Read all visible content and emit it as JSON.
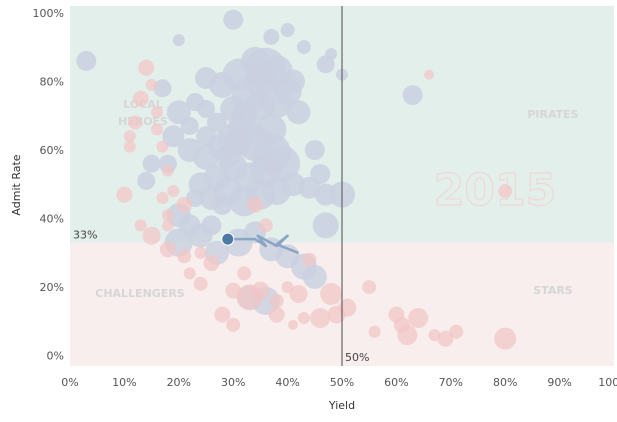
{
  "chart_data": {
    "type": "scatter",
    "xlabel": "Yield",
    "ylabel": "Admit Rate",
    "xlim": [
      0,
      100
    ],
    "ylim": [
      -3,
      102
    ],
    "x_ticks": [
      "0%",
      "10%",
      "20%",
      "30%",
      "40%",
      "50%",
      "60%",
      "70%",
      "80%",
      "90%",
      "100%"
    ],
    "y_ticks": [
      "0%",
      "20%",
      "40%",
      "60%",
      "80%",
      "100%"
    ],
    "tick_values_x": [
      0,
      10,
      20,
      30,
      40,
      50,
      60,
      70,
      80,
      90,
      100
    ],
    "tick_values_y": [
      0,
      20,
      40,
      60,
      80,
      100
    ],
    "reference_lines": {
      "x": 50,
      "x_label": "50%",
      "y": 33,
      "y_label": "33%"
    },
    "quadrant_labels": {
      "top_left": "LOCAL HEROES",
      "top_right": "PIRATES",
      "bottom_left": "CHALLENGERS",
      "bottom_right": "STARS"
    },
    "watermark": "2015",
    "colors": {
      "upper_band": "#e3efeb",
      "lower_band": "#f7eeed",
      "blue_bubble": "#c9cfdf",
      "pink_bubble": "#f2c4c4",
      "highlight": "#4e79a7",
      "trail": "#8aa5c3",
      "refline": "#666666",
      "quadrant_text": "#d6d6d6"
    },
    "highlight_point": {
      "x": 29,
      "y": 34
    },
    "trail": [
      [
        29,
        34
      ],
      [
        34,
        34
      ],
      [
        36,
        32
      ],
      [
        34.5,
        35
      ],
      [
        38,
        32
      ],
      [
        39,
        33.5
      ],
      [
        40,
        35
      ],
      [
        38,
        32.5
      ],
      [
        42,
        30
      ]
    ],
    "series": [
      {
        "name": "blue",
        "points": [
          [
            3,
            86,
            10
          ],
          [
            20,
            92,
            6
          ],
          [
            30,
            98,
            10
          ],
          [
            37,
            93,
            8
          ],
          [
            40,
            95,
            7
          ],
          [
            43,
            90,
            7
          ],
          [
            47,
            85,
            9
          ],
          [
            48,
            88,
            6
          ],
          [
            50,
            82,
            6
          ],
          [
            63,
            76,
            10
          ],
          [
            25,
            81,
            11
          ],
          [
            28,
            79,
            13
          ],
          [
            31,
            82,
            16
          ],
          [
            34,
            86,
            14
          ],
          [
            36,
            84,
            20
          ],
          [
            38,
            83,
            16
          ],
          [
            41,
            80,
            12
          ],
          [
            33,
            76,
            18
          ],
          [
            35,
            73,
            15
          ],
          [
            38,
            74,
            16
          ],
          [
            40,
            77,
            14
          ],
          [
            42,
            71,
            12
          ],
          [
            30,
            72,
            13
          ],
          [
            27,
            68,
            10
          ],
          [
            25,
            72,
            9
          ],
          [
            23,
            74,
            9
          ],
          [
            22,
            67,
            9
          ],
          [
            20,
            71,
            12
          ],
          [
            19,
            64,
            11
          ],
          [
            22,
            60,
            12
          ],
          [
            25,
            58,
            13
          ],
          [
            28,
            61,
            14
          ],
          [
            30,
            63,
            16
          ],
          [
            32,
            66,
            17
          ],
          [
            34,
            62,
            18
          ],
          [
            37,
            59,
            20
          ],
          [
            39,
            56,
            18
          ],
          [
            36,
            54,
            16
          ],
          [
            33,
            52,
            15
          ],
          [
            30,
            55,
            14
          ],
          [
            27,
            52,
            13
          ],
          [
            24,
            50,
            12
          ],
          [
            26,
            46,
            12
          ],
          [
            29,
            48,
            14
          ],
          [
            32,
            45,
            15
          ],
          [
            35,
            47,
            15
          ],
          [
            38,
            48,
            14
          ],
          [
            41,
            50,
            12
          ],
          [
            44,
            49,
            11
          ],
          [
            46,
            53,
            10
          ],
          [
            45,
            60,
            10
          ],
          [
            47,
            47,
            11
          ],
          [
            50,
            47,
            13
          ],
          [
            14,
            51,
            9
          ],
          [
            18,
            56,
            9
          ],
          [
            20,
            41,
            12
          ],
          [
            22,
            38,
            11
          ],
          [
            24,
            35,
            12
          ],
          [
            27,
            30,
            12
          ],
          [
            31,
            33,
            14
          ],
          [
            34,
            36,
            11
          ],
          [
            37,
            31,
            12
          ],
          [
            40,
            29,
            12
          ],
          [
            43,
            26,
            13
          ],
          [
            45,
            23,
            12
          ],
          [
            47,
            38,
            13
          ],
          [
            20,
            33,
            14
          ],
          [
            33,
            17,
            12
          ],
          [
            36,
            16,
            14
          ],
          [
            31,
            62,
            13
          ],
          [
            29,
            58,
            12
          ],
          [
            25,
            64,
            10
          ],
          [
            32,
            70,
            13
          ],
          [
            35,
            80,
            16
          ],
          [
            37,
            66,
            15
          ],
          [
            28,
            44,
            10
          ],
          [
            23,
            46,
            9
          ],
          [
            17,
            78,
            9
          ],
          [
            15,
            56,
            9
          ],
          [
            26,
            38,
            10
          ]
        ]
      },
      {
        "name": "pink",
        "points": [
          [
            14,
            84,
            8
          ],
          [
            15,
            79,
            6
          ],
          [
            13,
            75,
            8
          ],
          [
            12,
            68,
            7
          ],
          [
            11,
            64,
            6
          ],
          [
            11,
            61,
            6
          ],
          [
            16,
            71,
            6
          ],
          [
            16,
            66,
            6
          ],
          [
            10,
            47,
            8
          ],
          [
            17,
            61,
            6
          ],
          [
            18,
            54,
            6
          ],
          [
            19,
            48,
            6
          ],
          [
            17,
            46,
            6
          ],
          [
            18,
            41,
            6
          ],
          [
            13,
            38,
            6
          ],
          [
            15,
            35,
            9
          ],
          [
            18,
            31,
            8
          ],
          [
            21,
            29,
            7
          ],
          [
            26,
            27,
            8
          ],
          [
            32,
            24,
            7
          ],
          [
            24,
            21,
            7
          ],
          [
            30,
            19,
            8
          ],
          [
            33,
            17,
            13
          ],
          [
            35,
            19,
            9
          ],
          [
            38,
            16,
            7
          ],
          [
            40,
            20,
            6
          ],
          [
            42,
            18,
            9
          ],
          [
            38,
            12,
            8
          ],
          [
            43,
            11,
            6
          ],
          [
            46,
            11,
            10
          ],
          [
            49,
            12,
            9
          ],
          [
            51,
            14,
            9
          ],
          [
            55,
            20,
            7
          ],
          [
            56,
            7,
            6
          ],
          [
            60,
            12,
            8
          ],
          [
            61,
            9,
            8
          ],
          [
            62,
            6,
            10
          ],
          [
            64,
            11,
            10
          ],
          [
            67,
            6,
            6
          ],
          [
            69,
            5,
            8
          ],
          [
            71,
            7,
            7
          ],
          [
            80,
            5,
            11
          ],
          [
            66,
            82,
            5
          ],
          [
            80,
            48,
            7
          ],
          [
            48,
            18,
            11
          ],
          [
            34,
            44,
            8
          ],
          [
            36,
            38,
            7
          ],
          [
            28,
            12,
            8
          ],
          [
            30,
            9,
            7
          ],
          [
            24,
            30,
            6
          ],
          [
            21,
            44,
            8
          ],
          [
            18,
            38,
            6
          ],
          [
            41,
            9,
            5
          ],
          [
            44,
            28,
            7
          ],
          [
            22,
            24,
            6
          ]
        ]
      }
    ]
  }
}
